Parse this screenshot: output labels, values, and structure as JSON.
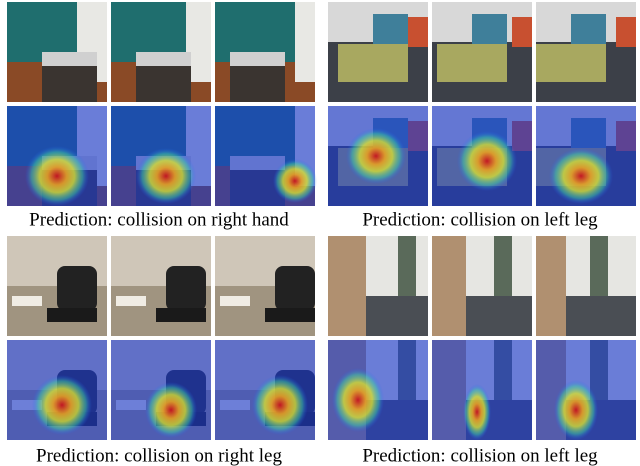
{
  "panels": [
    {
      "caption": "Prediction: collision on right hand"
    },
    {
      "caption": "Prediction: collision on left leg"
    },
    {
      "caption": "Prediction: collision on right leg"
    },
    {
      "caption": "Prediction: collision on left leg"
    }
  ]
}
